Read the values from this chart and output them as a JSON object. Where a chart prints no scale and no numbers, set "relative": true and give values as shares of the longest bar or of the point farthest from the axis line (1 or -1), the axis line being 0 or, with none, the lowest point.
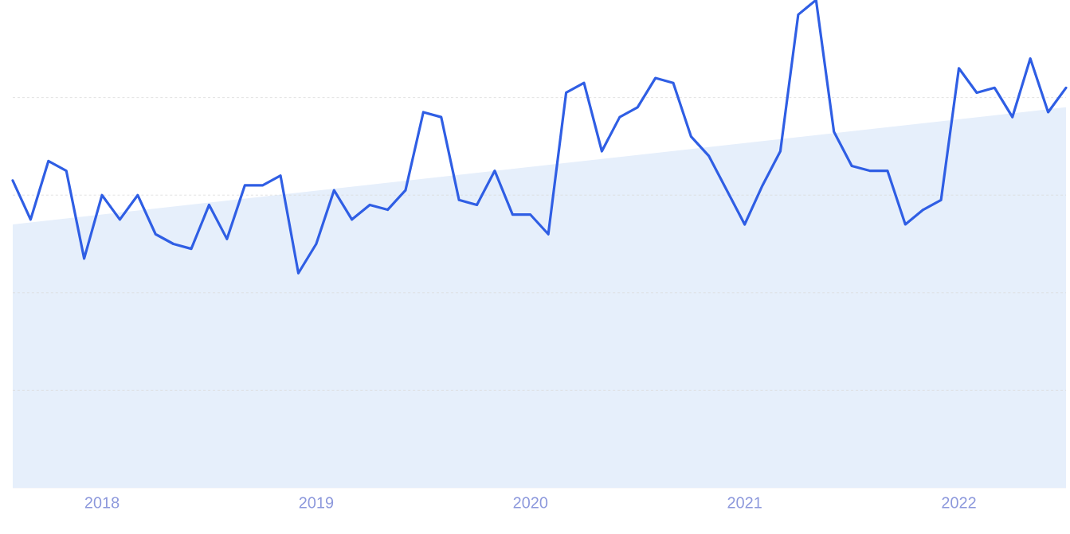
{
  "chart_data": {
    "type": "line",
    "relative": true,
    "grid": "y",
    "xlim": [
      "2017-08",
      "2022-07"
    ],
    "xticks": [
      "2018",
      "2019",
      "2020",
      "2021",
      "2022"
    ],
    "series": [
      {
        "type": "area",
        "color": "#e6effb",
        "x": [
          "2017-08",
          "2022-07"
        ],
        "values": [
          0.54,
          0.78
        ]
      },
      {
        "color": "#2f5ee4",
        "x": [
          "2017-08",
          "2017-09",
          "2017-10",
          "2017-11",
          "2017-12",
          "2018-01",
          "2018-02",
          "2018-03",
          "2018-04",
          "2018-05",
          "2018-06",
          "2018-07",
          "2018-08",
          "2018-09",
          "2018-10",
          "2018-11",
          "2018-12",
          "2019-01",
          "2019-02",
          "2019-03",
          "2019-04",
          "2019-05",
          "2019-06",
          "2019-07",
          "2019-08",
          "2019-09",
          "2019-10",
          "2019-11",
          "2019-12",
          "2020-01",
          "2020-02",
          "2020-03",
          "2020-04",
          "2020-05",
          "2020-06",
          "2020-07",
          "2020-08",
          "2020-09",
          "2020-10",
          "2020-11",
          "2020-12",
          "2021-01",
          "2021-02",
          "2021-03",
          "2021-04",
          "2021-05",
          "2021-06",
          "2021-07",
          "2021-08",
          "2021-09",
          "2021-10",
          "2021-11",
          "2021-12",
          "2022-01",
          "2022-02",
          "2022-03",
          "2022-04",
          "2022-05",
          "2022-06",
          "2022-07"
        ],
        "values": [
          0.63,
          0.55,
          0.67,
          0.65,
          0.47,
          0.6,
          0.55,
          0.6,
          0.52,
          0.5,
          0.49,
          0.58,
          0.51,
          0.62,
          0.62,
          0.64,
          0.44,
          0.5,
          0.61,
          0.55,
          0.58,
          0.57,
          0.61,
          0.77,
          0.76,
          0.59,
          0.58,
          0.65,
          0.56,
          0.56,
          0.52,
          0.81,
          0.83,
          0.69,
          0.76,
          0.78,
          0.84,
          0.83,
          0.72,
          0.68,
          0.61,
          0.54,
          0.62,
          0.69,
          0.97,
          1.0,
          0.73,
          0.66,
          0.65,
          0.65,
          0.54,
          0.57,
          0.59,
          0.86,
          0.81,
          0.82,
          0.76,
          0.88,
          0.77,
          0.82
        ]
      }
    ]
  }
}
